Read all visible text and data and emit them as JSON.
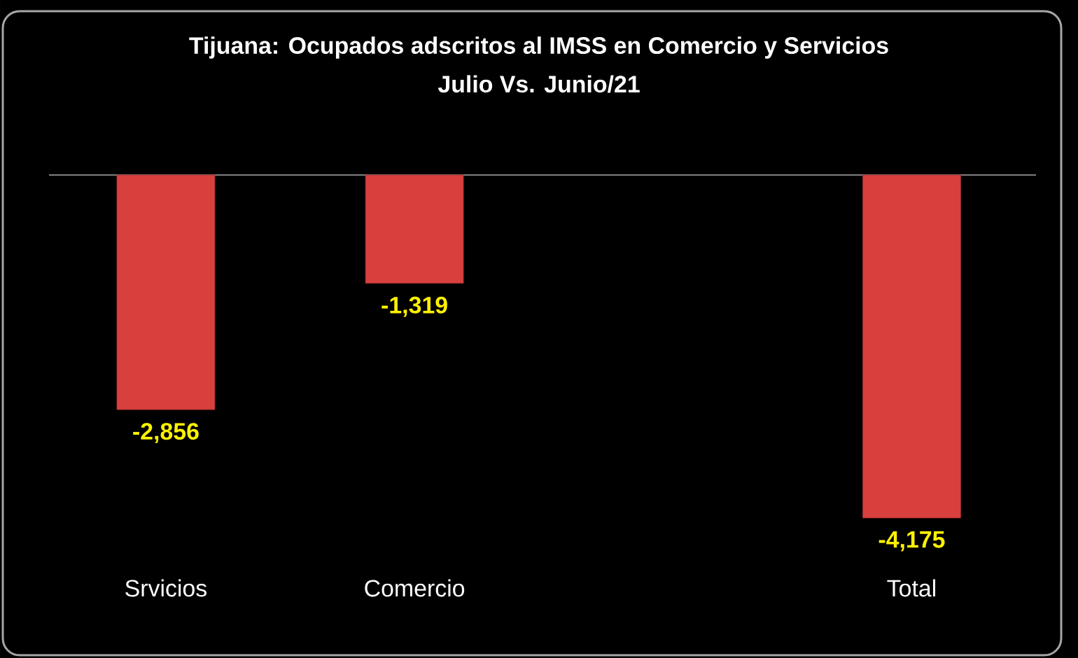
{
  "chart_data": {
    "type": "bar",
    "title": "Tijuana: Ocupados adscritos al IMSS en Comercio y Servicios",
    "subtitle": "Julio Vs. Junio/21",
    "categories": [
      "Srvicios",
      "Comercio",
      null,
      "Total"
    ],
    "values": [
      -2856,
      -1319,
      null,
      -4175
    ],
    "value_labels": [
      "-2,856",
      "-1,319",
      null,
      "-4,175"
    ],
    "color": "#d8403e"
  }
}
